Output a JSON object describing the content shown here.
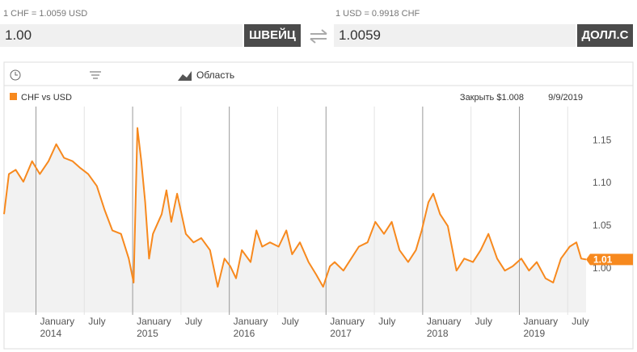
{
  "converter": {
    "from_rate": "1 CHF = 1.0059 USD",
    "from_amount": "1.00",
    "from_currency": "ШВЕЙЦ",
    "to_rate": "1 USD = 0.9918 CHF",
    "to_amount": "1.0059",
    "to_currency": "ДОЛЛ.С"
  },
  "toolbar": {
    "chart_type": "Область"
  },
  "chart_data": {
    "type": "area",
    "close_text": "Закрыть $1.008",
    "date": "9/9/2019",
    "current_value": 1.01,
    "x": [
      2013.67,
      2013.72,
      2013.79,
      2013.87,
      2013.96,
      2014.04,
      2014.13,
      2014.21,
      2014.29,
      2014.38,
      2014.46,
      2014.54,
      2014.63,
      2014.71,
      2014.79,
      2014.88,
      2014.96,
      2015.01,
      2015.05,
      2015.09,
      2015.13,
      2015.17,
      2015.21,
      2015.3,
      2015.35,
      2015.4,
      2015.46,
      2015.55,
      2015.63,
      2015.71,
      2015.8,
      2015.88,
      2015.95,
      2016.01,
      2016.07,
      2016.13,
      2016.22,
      2016.28,
      2016.34,
      2016.42,
      2016.51,
      2016.59,
      2016.65,
      2016.73,
      2016.82,
      2016.9,
      2016.97,
      2017.04,
      2017.09,
      2017.18,
      2017.26,
      2017.34,
      2017.43,
      2017.51,
      2017.6,
      2017.68,
      2017.76,
      2017.85,
      2017.93,
      2017.99,
      2018.06,
      2018.11,
      2018.18,
      2018.26,
      2018.35,
      2018.43,
      2018.52,
      2018.6,
      2018.68,
      2018.77,
      2018.85,
      2018.93,
      2019.02,
      2019.1,
      2019.18,
      2019.27,
      2019.35,
      2019.43,
      2019.52,
      2019.59,
      2019.64,
      2019.69
    ],
    "series": [
      {
        "name": "CHF vs USD",
        "color": "#f7891e",
        "values": [
          1.063,
          1.11,
          1.115,
          1.101,
          1.125,
          1.11,
          1.125,
          1.145,
          1.129,
          1.125,
          1.117,
          1.11,
          1.096,
          1.068,
          1.044,
          1.04,
          1.011,
          0.983,
          1.164,
          1.125,
          1.077,
          1.011,
          1.04,
          1.063,
          1.091,
          1.054,
          1.087,
          1.04,
          1.03,
          1.035,
          1.021,
          0.978,
          1.011,
          1.002,
          0.988,
          1.021,
          1.007,
          1.044,
          1.025,
          1.03,
          1.025,
          1.044,
          1.016,
          1.03,
          1.007,
          0.992,
          0.978,
          1.002,
          1.007,
          0.997,
          1.011,
          1.025,
          1.03,
          1.054,
          1.04,
          1.054,
          1.021,
          1.007,
          1.021,
          1.044,
          1.077,
          1.087,
          1.063,
          1.049,
          0.997,
          1.011,
          1.007,
          1.021,
          1.04,
          1.011,
          0.997,
          1.002,
          1.011,
          0.997,
          1.007,
          0.988,
          0.983,
          1.011,
          1.025,
          1.03,
          1.011,
          1.01
        ]
      }
    ],
    "xlim": [
      2013.67,
      2019.69
    ],
    "ylim": [
      0.948,
      1.189
    ],
    "yticks": [
      {
        "value": 1,
        "label": "1.00"
      },
      1.05,
      {
        "value": 1.1,
        "label": "1.10"
      },
      1.15
    ],
    "xticks": [
      {
        "value": 2014,
        "label": "January"
      },
      {
        "value": 2014.5,
        "label": "July"
      },
      {
        "value": 2015,
        "label": "January"
      },
      {
        "value": 2015.5,
        "label": "July"
      },
      {
        "value": 2016,
        "label": "January"
      },
      {
        "value": 2016.5,
        "label": "July"
      },
      {
        "value": 2017,
        "label": "January"
      },
      {
        "value": 2017.5,
        "label": "July"
      },
      {
        "value": 2018,
        "label": "January"
      },
      {
        "value": 2018.5,
        "label": "July"
      },
      {
        "value": 2019,
        "label": "January"
      },
      {
        "value": 2019.5,
        "label": "July"
      }
    ],
    "xticks_years": [
      2014,
      2015,
      2016,
      2017,
      2018,
      2019
    ]
  }
}
